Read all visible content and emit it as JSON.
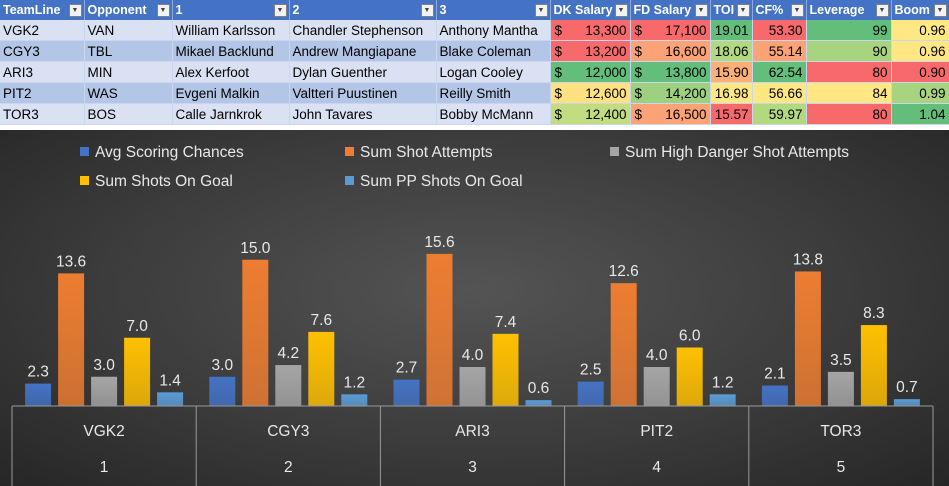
{
  "table": {
    "headers": [
      "TeamLine",
      "Opponent",
      "1",
      "2",
      "3",
      "DK Salary",
      "FD Salary",
      "TOI",
      "CF%",
      "Leverage",
      "Boom"
    ],
    "rows": [
      {
        "teamline": "VGK2",
        "opponent": "VAN",
        "p1": "William Karlsson",
        "p2": "Chandler Stephenson",
        "p3": "Anthony Mantha",
        "dk": "13,300",
        "fd": "17,100",
        "toi": "19.01",
        "cf": "53.30",
        "leverage": "99",
        "boom": "0.96"
      },
      {
        "teamline": "CGY3",
        "opponent": "TBL",
        "p1": "Mikael Backlund",
        "p2": "Andrew Mangiapane",
        "p3": "Blake Coleman",
        "dk": "13,200",
        "fd": "16,600",
        "toi": "18.06",
        "cf": "55.14",
        "leverage": "90",
        "boom": "0.96"
      },
      {
        "teamline": "ARI3",
        "opponent": "MIN",
        "p1": "Alex Kerfoot",
        "p2": "Dylan Guenther",
        "p3": "Logan Cooley",
        "dk": "12,000",
        "fd": "13,800",
        "toi": "15.90",
        "cf": "62.54",
        "leverage": "80",
        "boom": "0.90"
      },
      {
        "teamline": "PIT2",
        "opponent": "WAS",
        "p1": "Evgeni Malkin",
        "p2": "Valtteri Puustinen",
        "p3": "Reilly Smith",
        "dk": "12,600",
        "fd": "14,200",
        "toi": "16.98",
        "cf": "56.66",
        "leverage": "84",
        "boom": "0.99"
      },
      {
        "teamline": "TOR3",
        "opponent": "BOS",
        "p1": "Calle Jarnkrok",
        "p2": "John Tavares",
        "p3": "Bobby McMann",
        "dk": "12,400",
        "fd": "16,500",
        "toi": "15.57",
        "cf": "59.97",
        "leverage": "80",
        "boom": "1.04"
      }
    ],
    "currency_symbol": "$",
    "cell_colors": {
      "dk": [
        "#f8696b",
        "#f8696b",
        "#63be7b",
        "#ffe17f",
        "#c2dc81"
      ],
      "fd": [
        "#f8696b",
        "#fba276",
        "#63be7b",
        "#9ed17f",
        "#fba276"
      ],
      "toi": [
        "#63be7b",
        "#b2d880",
        "#fbb079",
        "#ffe883",
        "#f8696b"
      ],
      "cf": [
        "#f8696b",
        "#fba276",
        "#63be7b",
        "#ffe883",
        "#b2d880"
      ],
      "leverage": [
        "#63be7b",
        "#a8d37f",
        "#f8696b",
        "#ffe883",
        "#f8696b"
      ],
      "boom": [
        "#ffe883",
        "#ffe883",
        "#f8696b",
        "#a8d37f",
        "#63be7b"
      ]
    }
  },
  "chart_data": {
    "type": "bar",
    "categories": [
      {
        "label": "VGK2",
        "index": "1"
      },
      {
        "label": "CGY3",
        "index": "2"
      },
      {
        "label": "ARI3",
        "index": "3"
      },
      {
        "label": "PIT2",
        "index": "4"
      },
      {
        "label": "TOR3",
        "index": "5"
      }
    ],
    "series": [
      {
        "name": "Avg Scoring Chances",
        "color": "#4472c4",
        "values": [
          2.3,
          3.0,
          2.7,
          2.5,
          2.1
        ]
      },
      {
        "name": "Sum Shot Attempts",
        "color": "#ed7d31",
        "values": [
          13.6,
          15.0,
          15.6,
          12.6,
          13.8
        ]
      },
      {
        "name": "Sum High Danger Shot Attempts",
        "color": "#a5a5a5",
        "values": [
          3.0,
          4.2,
          4.0,
          4.0,
          3.5
        ]
      },
      {
        "name": "Sum Shots On Goal",
        "color": "#ffc000",
        "values": [
          7.0,
          7.6,
          7.4,
          6.0,
          8.3
        ]
      },
      {
        "name": "Sum PP Shots On Goal",
        "color": "#5b9bd5",
        "values": [
          1.4,
          1.2,
          0.6,
          1.2,
          0.7
        ]
      }
    ],
    "title": "",
    "xlabel": "",
    "ylabel": "",
    "ylim": [
      0,
      18
    ],
    "grid": false,
    "legend_position": "top",
    "data_labels": true
  }
}
